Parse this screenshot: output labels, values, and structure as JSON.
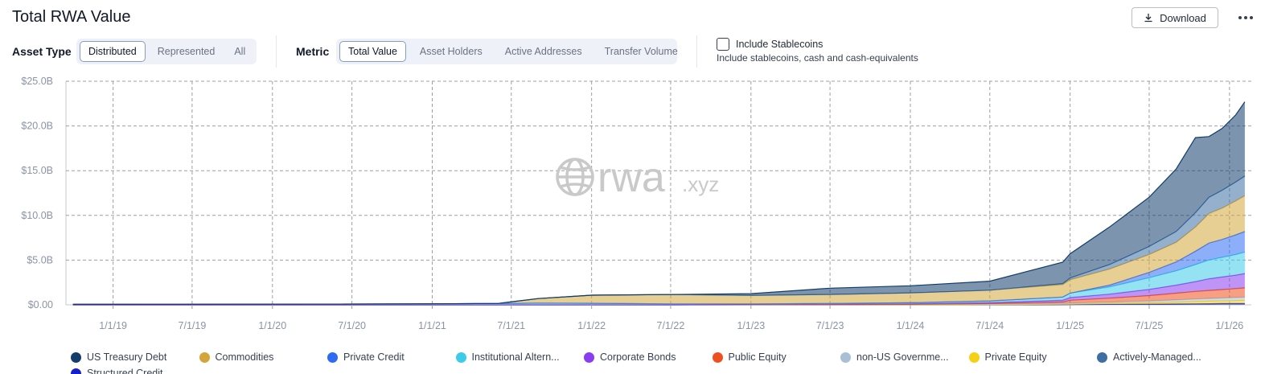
{
  "header": {
    "title": "Total RWA Value",
    "download_label": "Download"
  },
  "controls": {
    "asset_type": {
      "label": "Asset Type",
      "options": [
        "Distributed",
        "Represented",
        "All"
      ],
      "selected": "Distributed"
    },
    "metric": {
      "label": "Metric",
      "options": [
        "Total Value",
        "Asset Holders",
        "Active Addresses",
        "Transfer Volume"
      ],
      "selected": "Total Value"
    },
    "stablecoins": {
      "label": "Include Stablecoins",
      "description": "Include stablecoins, cash and cash-equivalents",
      "checked": false
    }
  },
  "watermark": {
    "brand": "rwa",
    "suffix": ".xyz"
  },
  "legend": [
    {
      "label": "US Treasury Debt",
      "color": "#123d6b"
    },
    {
      "label": "Commodities",
      "color": "#d4a53a"
    },
    {
      "label": "Private Credit",
      "color": "#2f6bf2"
    },
    {
      "label": "Institutional Altern...",
      "color": "#3ccbe8"
    },
    {
      "label": "Corporate Bonds",
      "color": "#8a3cf0"
    },
    {
      "label": "Public Equity",
      "color": "#f0501e"
    },
    {
      "label": "non-US Governme...",
      "color": "#a9bfd6"
    },
    {
      "label": "Private Equity",
      "color": "#f5d015"
    },
    {
      "label": "Actively-Managed...",
      "color": "#3d6fa3"
    },
    {
      "label": "Structured Credit",
      "color": "#1620c8"
    }
  ],
  "chart_data": {
    "type": "area",
    "stacked": true,
    "title": "Total RWA Value",
    "xlabel": "",
    "ylabel": "",
    "y_tick_labels": [
      "$0.00",
      "$5.0B",
      "$10.0B",
      "$15.0B",
      "$20.0B",
      "$25.0B"
    ],
    "y_ticks": [
      0,
      5,
      10,
      15,
      20,
      25
    ],
    "ylim": [
      0,
      25
    ],
    "y_unit": "USD billions",
    "x_tick_labels": [
      "1/1/19",
      "7/1/19",
      "1/1/20",
      "7/1/20",
      "1/1/21",
      "7/1/21",
      "1/1/22",
      "7/1/22",
      "1/1/23",
      "7/1/23",
      "1/1/24",
      "7/1/24",
      "1/1/25",
      "7/1/25",
      "1/1/26"
    ],
    "x_ticks": [
      "2019-01-01",
      "2019-07-01",
      "2020-01-01",
      "2020-07-01",
      "2021-01-01",
      "2021-07-01",
      "2022-01-01",
      "2022-07-01",
      "2023-01-01",
      "2023-07-01",
      "2024-01-01",
      "2024-07-01",
      "2025-01-01",
      "2025-07-01",
      "2026-01-01"
    ],
    "xlim": [
      "2018-09-15",
      "2026-02-20"
    ],
    "grid": true,
    "legend_position": "bottom",
    "x": [
      "2018-10-01",
      "2019-06-01",
      "2020-06-01",
      "2021-01-01",
      "2021-06-01",
      "2021-09-01",
      "2022-01-01",
      "2022-07-01",
      "2023-01-01",
      "2023-07-01",
      "2024-01-01",
      "2024-07-01",
      "2024-12-15",
      "2025-01-01",
      "2025-04-01",
      "2025-07-01",
      "2025-09-01",
      "2025-10-15",
      "2025-11-15",
      "2025-12-15",
      "2026-01-15",
      "2026-02-05"
    ],
    "series": [
      {
        "name": "Structured Credit",
        "values": [
          0,
          0,
          0,
          0,
          0,
          0,
          0,
          0,
          0,
          0,
          0,
          0,
          0.02,
          0.03,
          0.05,
          0.08,
          0.1,
          0.12,
          0.13,
          0.14,
          0.15,
          0.15
        ]
      },
      {
        "name": "Private Equity",
        "values": [
          0,
          0,
          0,
          0,
          0,
          0,
          0,
          0,
          0,
          0,
          0,
          0.02,
          0.05,
          0.06,
          0.1,
          0.15,
          0.2,
          0.25,
          0.28,
          0.3,
          0.33,
          0.35
        ]
      },
      {
        "name": "non-US Governme...",
        "values": [
          0,
          0,
          0,
          0,
          0,
          0,
          0,
          0,
          0.03,
          0.04,
          0.05,
          0.07,
          0.1,
          0.12,
          0.15,
          0.2,
          0.25,
          0.28,
          0.3,
          0.32,
          0.34,
          0.35
        ]
      },
      {
        "name": "Public Equity",
        "values": [
          0,
          0,
          0,
          0,
          0,
          0,
          0,
          0,
          0,
          0,
          0,
          0.05,
          0.15,
          0.3,
          0.45,
          0.6,
          0.75,
          0.85,
          0.9,
          0.95,
          1.0,
          1.05
        ]
      },
      {
        "name": "Corporate Bonds",
        "values": [
          0,
          0,
          0,
          0,
          0,
          0,
          0,
          0,
          0.02,
          0.04,
          0.06,
          0.1,
          0.2,
          0.3,
          0.45,
          0.7,
          0.9,
          1.1,
          1.3,
          1.4,
          1.5,
          1.6
        ]
      },
      {
        "name": "Institutional Altern...",
        "values": [
          0.05,
          0.06,
          0.08,
          0.12,
          0.15,
          0.2,
          0.18,
          0.1,
          0.05,
          0.08,
          0.12,
          0.2,
          0.35,
          0.5,
          0.8,
          1.3,
          1.6,
          1.9,
          2.1,
          2.2,
          2.3,
          2.4
        ]
      },
      {
        "name": "Private Credit",
        "values": [
          0,
          0,
          0,
          0,
          0,
          0,
          0,
          0,
          0,
          0,
          0,
          0,
          0,
          0,
          0.2,
          0.6,
          1.0,
          1.5,
          1.9,
          2.0,
          2.2,
          2.3
        ]
      },
      {
        "name": "Commodities",
        "values": [
          0,
          0,
          0,
          0,
          0,
          0.5,
          0.9,
          1.05,
          0.95,
          1.0,
          1.1,
          1.2,
          1.4,
          1.5,
          1.8,
          2.0,
          2.2,
          2.7,
          3.3,
          3.5,
          3.8,
          4.0
        ]
      },
      {
        "name": "Actively-Managed...",
        "values": [
          0,
          0,
          0,
          0,
          0,
          0,
          0,
          0,
          0,
          0,
          0,
          0,
          0.1,
          0.2,
          0.5,
          0.9,
          1.2,
          1.6,
          1.8,
          2.0,
          2.1,
          2.2
        ]
      },
      {
        "name": "US Treasury Debt",
        "values": [
          0,
          0,
          0,
          0,
          0,
          0,
          0,
          0,
          0.2,
          0.7,
          0.8,
          1.0,
          2.4,
          2.7,
          4.2,
          5.5,
          7.0,
          8.4,
          6.8,
          6.9,
          7.5,
          8.3
        ]
      }
    ]
  }
}
